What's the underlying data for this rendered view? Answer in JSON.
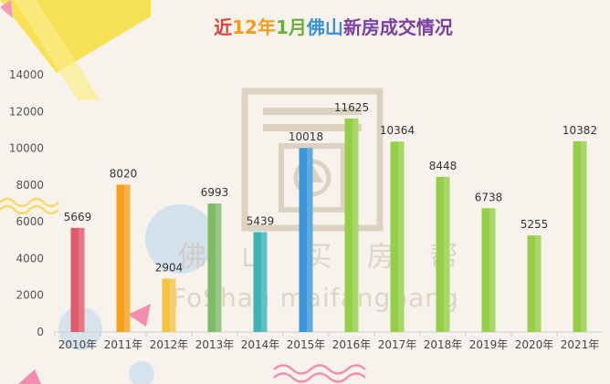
{
  "chart_data": {
    "type": "bar",
    "title": "近12年1月佛山新房成交情况",
    "categories": [
      "2010年",
      "2011年",
      "2012年",
      "2013年",
      "2014年",
      "2015年",
      "2016年",
      "2017年",
      "2018年",
      "2019年",
      "2020年",
      "2021年"
    ],
    "values": [
      5669,
      8020,
      2904,
      6993,
      5439,
      10018,
      11625,
      10364,
      8448,
      6738,
      5255,
      10382
    ],
    "ylim": [
      0,
      14000
    ],
    "yticks": [
      0,
      2000,
      4000,
      6000,
      8000,
      10000,
      12000,
      14000
    ],
    "grid": false,
    "legend": "none",
    "bar_colors": [
      "#e05a6a",
      "#f7a11a",
      "#f6c243",
      "#7dbb67",
      "#3fb3b8",
      "#3a97d9",
      "#95cf46",
      "#95cf46",
      "#95cf46",
      "#95cf46",
      "#95cf46",
      "#95cf46"
    ],
    "title_colors": [
      "#e0403a",
      "#f39c1b",
      "#6cae3f",
      "#3a8fd6",
      "#7a3fa0"
    ]
  },
  "watermark": {
    "chinese": "佛 山 买 房 帮",
    "pinyin": "FoShan maifangbang"
  }
}
